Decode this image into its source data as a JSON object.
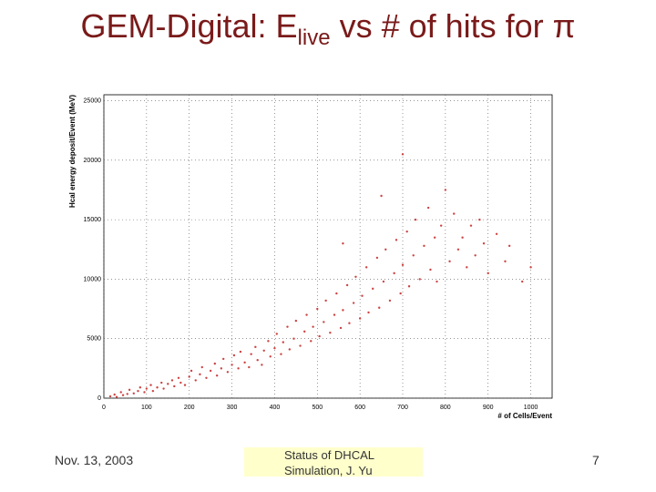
{
  "title": {
    "main": "GEM-Digital: E",
    "subscript": "live",
    "rest": "vs # of hits for π"
  },
  "chart_data": {
    "type": "scatter",
    "x_label": "# of Cells/Event",
    "y_label": "Hcal energy deposit/Event (MeV)",
    "color": "#cc4444",
    "grid": true,
    "xlim": [
      0,
      1050
    ],
    "ylim": [
      0,
      25500
    ],
    "xticks": [
      0,
      100,
      200,
      300,
      400,
      500,
      600,
      700,
      800,
      900,
      1000
    ],
    "yticks": [
      0,
      5000,
      10000,
      15000,
      20000,
      25000
    ],
    "x": [
      15,
      25,
      30,
      40,
      45,
      55,
      60,
      70,
      80,
      85,
      95,
      100,
      110,
      115,
      125,
      135,
      140,
      150,
      160,
      165,
      175,
      180,
      190,
      200,
      205,
      215,
      225,
      230,
      240,
      250,
      260,
      265,
      275,
      280,
      290,
      300,
      305,
      315,
      320,
      330,
      340,
      345,
      355,
      360,
      370,
      375,
      385,
      390,
      400,
      405,
      415,
      420,
      430,
      435,
      445,
      450,
      460,
      470,
      475,
      485,
      490,
      500,
      505,
      515,
      520,
      530,
      540,
      545,
      555,
      560,
      570,
      575,
      585,
      590,
      600,
      605,
      615,
      620,
      630,
      640,
      645,
      655,
      660,
      670,
      680,
      685,
      695,
      700,
      710,
      715,
      725,
      730,
      740,
      750,
      760,
      765,
      775,
      780,
      790,
      800,
      810,
      820,
      830,
      840,
      850,
      860,
      870,
      880,
      890,
      900,
      920,
      940,
      950,
      700,
      1000,
      980,
      650,
      560
    ],
    "values": [
      150,
      300,
      100,
      500,
      250,
      350,
      700,
      400,
      600,
      900,
      500,
      800,
      1100,
      600,
      900,
      1300,
      800,
      1200,
      1500,
      1000,
      1700,
      1300,
      1100,
      1800,
      2300,
      1500,
      2000,
      2600,
      1700,
      2300,
      2900,
      1900,
      2500,
      3300,
      2200,
      2800,
      3600,
      2500,
      3900,
      3000,
      2600,
      3700,
      4300,
      3200,
      2800,
      4000,
      4800,
      3500,
      4200,
      5400,
      3700,
      4700,
      6000,
      4100,
      5000,
      6500,
      4400,
      5600,
      7000,
      4800,
      6000,
      7500,
      5200,
      6400,
      8200,
      5500,
      7000,
      8800,
      5900,
      7400,
      9500,
      6300,
      8000,
      10200,
      6700,
      8600,
      11000,
      7200,
      9200,
      11800,
      7600,
      9800,
      12500,
      8200,
      10500,
      13300,
      8800,
      11200,
      14000,
      9400,
      12000,
      15000,
      10000,
      12800,
      16000,
      10800,
      13500,
      9800,
      14500,
      17500,
      11500,
      15500,
      12500,
      13500,
      11000,
      14500,
      12000,
      15000,
      13000,
      10500,
      13800,
      11500,
      12800,
      20500,
      11000,
      9800,
      17000,
      13000
    ]
  },
  "footer": {
    "date": "Nov. 13, 2003",
    "center": [
      "Status of DHCAL",
      "Simulation, J. Yu"
    ],
    "page": "7"
  }
}
